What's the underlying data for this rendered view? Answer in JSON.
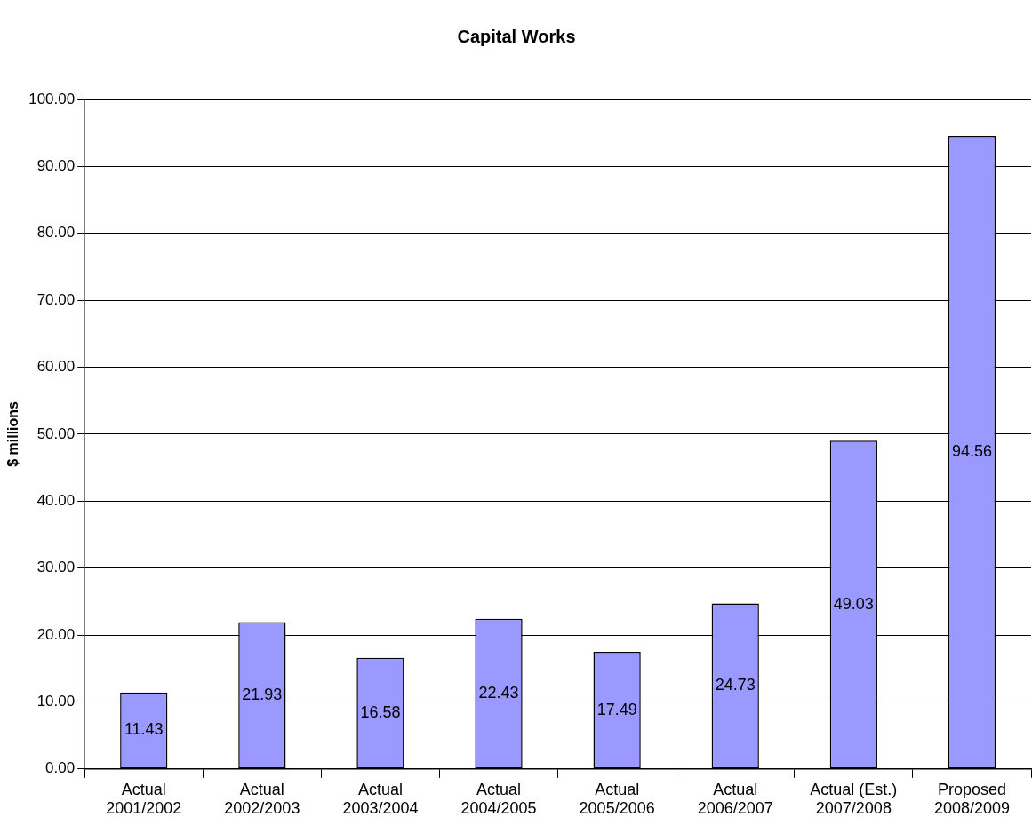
{
  "chart_data": {
    "type": "bar",
    "title": "Capital Works",
    "ylabel": "$ millions",
    "categories": [
      "Actual 2001/2002",
      "Actual 2002/2003",
      "Actual 2003/2004",
      "Actual 2004/2005",
      "Actual 2005/2006",
      "Actual 2006/2007",
      "Actual (Est.) 2007/2008",
      "Proposed 2008/2009"
    ],
    "values": [
      11.43,
      21.93,
      16.58,
      22.43,
      17.49,
      24.73,
      49.03,
      94.56
    ],
    "color": "#9999ff",
    "ylim": [
      0,
      100
    ],
    "yticks": [
      {
        "value": 0,
        "label": "0.00"
      },
      {
        "value": 10,
        "label": "10.00"
      },
      {
        "value": 20,
        "label": "20.00"
      },
      {
        "value": 30,
        "label": "30.00"
      },
      {
        "value": 40,
        "label": "40.00"
      },
      {
        "value": 50,
        "label": "50.00"
      },
      {
        "value": 60,
        "label": "60.00"
      },
      {
        "value": 70,
        "label": "70.00"
      },
      {
        "value": 80,
        "label": "80.00"
      },
      {
        "value": 90,
        "label": "90.00"
      },
      {
        "value": 100,
        "label": "100.00"
      }
    ],
    "grid": "y",
    "data_labels": true,
    "legend": false
  }
}
